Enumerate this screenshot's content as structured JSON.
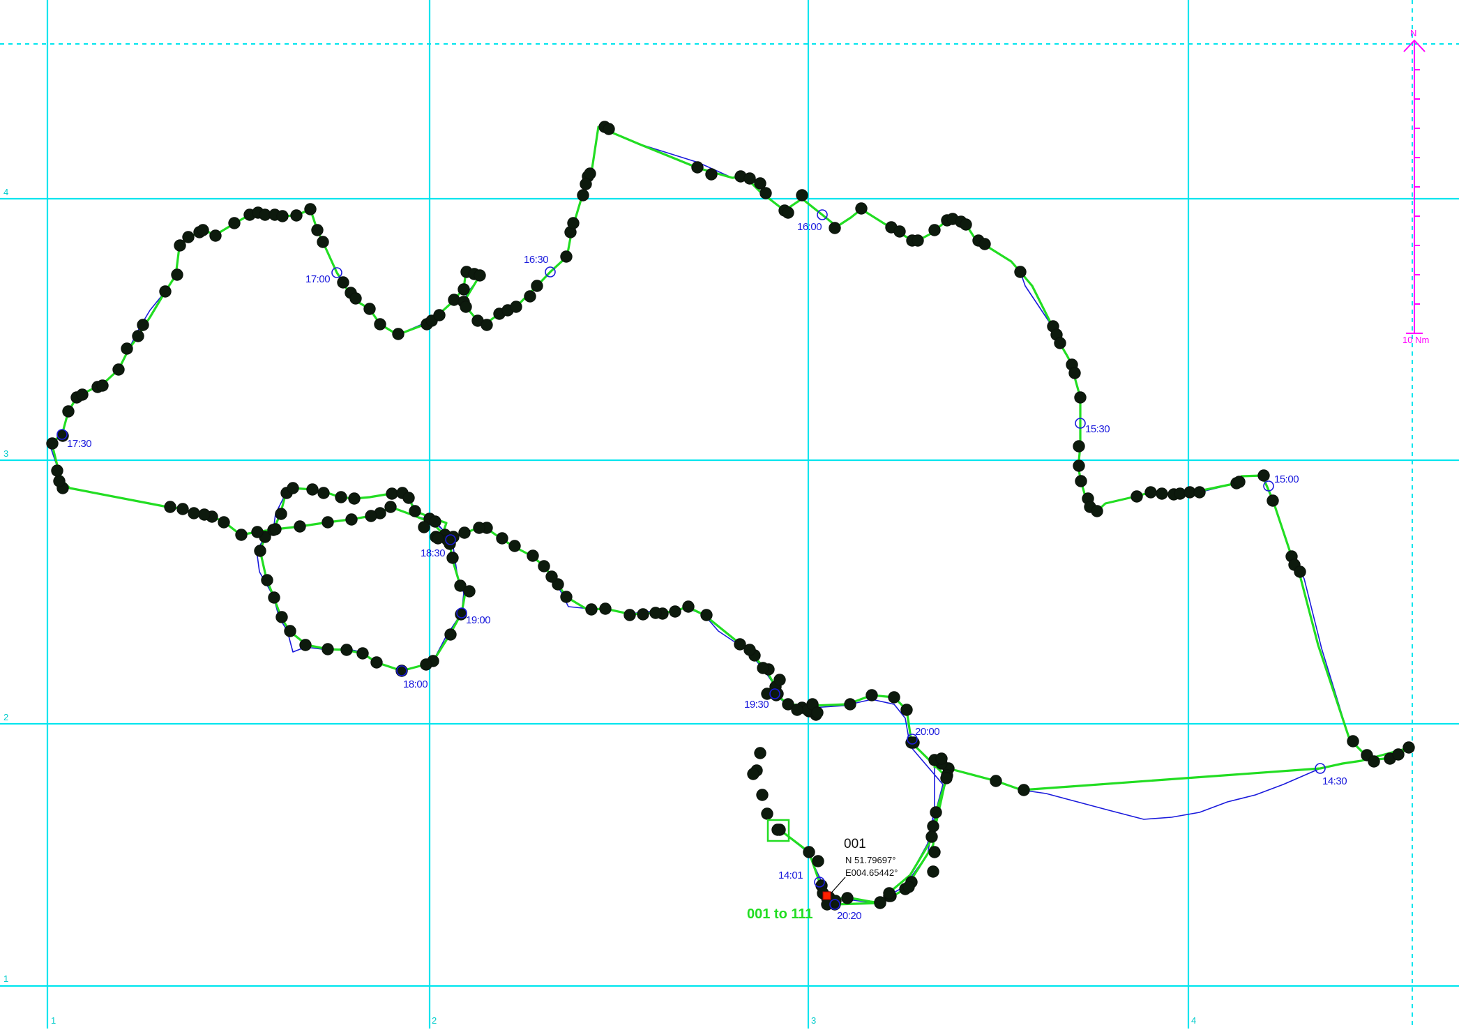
{
  "map": {
    "colors": {
      "background": "#ffffff",
      "grid": "#00e5ee",
      "route": "#22dd22",
      "track": "#1a1adc",
      "points": "#0d1a0d",
      "scale": "#ff00ff",
      "selected": "#ff2200"
    },
    "grid_labels": {
      "x": [
        "1",
        "2",
        "3",
        "4"
      ],
      "y": [
        "4",
        "3",
        "2",
        "1"
      ]
    },
    "scale_bar": {
      "north_label": "N",
      "length_label": "10 Nm",
      "ticks": 10
    },
    "time_labels": [
      {
        "id": "t1430",
        "text": "14:30"
      },
      {
        "id": "t1500",
        "text": "15:00"
      },
      {
        "id": "t1530",
        "text": "15:30"
      },
      {
        "id": "t1600",
        "text": "16:00"
      },
      {
        "id": "t1630",
        "text": "16:30"
      },
      {
        "id": "t1700",
        "text": "17:00"
      },
      {
        "id": "t1730",
        "text": "17:30"
      },
      {
        "id": "t1800",
        "text": "18:00"
      },
      {
        "id": "t1830",
        "text": "18:30"
      },
      {
        "id": "t1900",
        "text": "19:00"
      },
      {
        "id": "t1930",
        "text": "19:30"
      },
      {
        "id": "t2000",
        "text": "20:00"
      },
      {
        "id": "t2020",
        "text": "20:20"
      },
      {
        "id": "t1401",
        "text": "14:01"
      }
    ],
    "waypoint": {
      "name": "001",
      "lat": "N 51.79697°",
      "lon": "E004.65442°"
    },
    "route_label": "001 to 111"
  }
}
